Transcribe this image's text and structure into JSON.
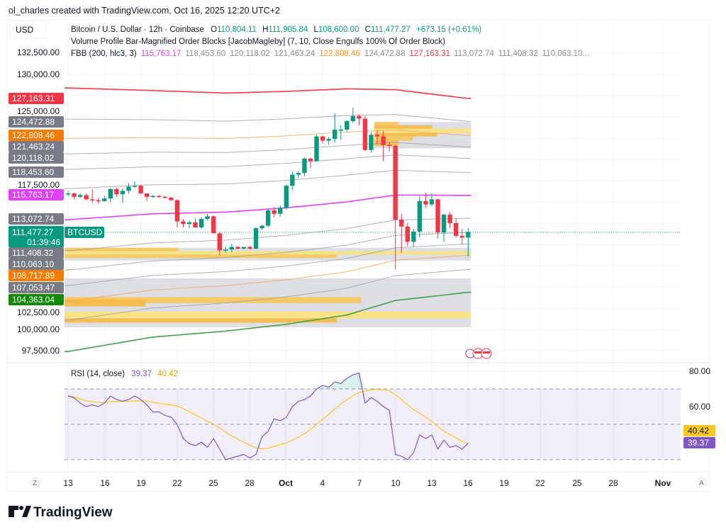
{
  "credit": "ol_charles created with TradingView.com, Oct 16, 2025 12:20 UTC+2",
  "currency": "USD",
  "legend": {
    "symbol": "Bitcoin / U.S. Dollar · 12h · Coinbase",
    "o_label": "O",
    "o": "110,804.11",
    "h_label": "H",
    "h": "111,905.84",
    "l_label": "L",
    "l": "108,600.00",
    "c_label": "C",
    "c": "111,477.27",
    "change": "+673.15 (+0.61%)",
    "indicator1": "Volume Profile Bar-Magnified Order Blocks [JacobMagleby] (7, 10, Close Engulfs 100% Of Order Block)",
    "indicator2": "FBB (200, hlc3, 3)",
    "fbb_values": [
      {
        "text": "115,763.17",
        "color": "#e040fb"
      },
      {
        "text": "118,453.60",
        "color": "#8c8c8c"
      },
      {
        "text": "120,118.02",
        "color": "#8c8c8c"
      },
      {
        "text": "121,463.24",
        "color": "#8c8c8c"
      },
      {
        "text": "122,808.46",
        "color": "#f7931a"
      },
      {
        "text": "124,472.88",
        "color": "#8c8c8c"
      },
      {
        "text": "127,163.31",
        "color": "#f23645"
      },
      {
        "text": "113,072.74",
        "color": "#8c8c8c"
      },
      {
        "text": "111,408.32",
        "color": "#8c8c8c"
      },
      {
        "text": "110,063.10...",
        "color": "#8c8c8c"
      }
    ]
  },
  "price_axis": [
    "132,500.00",
    "130,000.00",
    "125,000.00",
    "117,500.00",
    "102,500.00",
    "100,000.00",
    "97,500.00"
  ],
  "price_badges": [
    {
      "text": "127,163.31",
      "color": "#f23645"
    },
    {
      "text": "124,472.88",
      "color": "#787b86"
    },
    {
      "text": "122,808.46",
      "color": "#f57c00"
    },
    {
      "text": "121,463.24",
      "color": "#787b86"
    },
    {
      "text": "120,118.02",
      "color": "#787b86"
    },
    {
      "text": "118,453.60",
      "color": "#787b86"
    },
    {
      "text": "115,763.17",
      "color": "#e040fb"
    },
    {
      "text": "113,072.74",
      "color": "#787b86"
    },
    {
      "text": "111,408.32",
      "color": "#787b86"
    },
    {
      "text": "110,063.10",
      "color": "#787b86"
    },
    {
      "text": "108,717.89",
      "color": "#f57c00"
    },
    {
      "text": "107,053.47",
      "color": "#787b86"
    },
    {
      "text": "104,363.04",
      "color": "#138a07"
    }
  ],
  "last_price": {
    "value": "111,477.27",
    "countdown": "01:39:46",
    "symbol_tag": "BTCUSD",
    "color": "#089981"
  },
  "time_axis": [
    {
      "text": "13"
    },
    {
      "text": "16"
    },
    {
      "text": "19"
    },
    {
      "text": "22"
    },
    {
      "text": "25"
    },
    {
      "text": "28"
    },
    {
      "text": "Oct",
      "bold": true
    },
    {
      "text": "4"
    },
    {
      "text": "7"
    },
    {
      "text": "10"
    },
    {
      "text": "13"
    },
    {
      "text": "16"
    },
    {
      "text": "19"
    },
    {
      "text": "22"
    },
    {
      "text": "25"
    },
    {
      "text": "28"
    },
    {
      "text": "Nov",
      "bold": true
    }
  ],
  "time_axis_left_btn": "Z",
  "time_axis_right_btn": "A",
  "rsi": {
    "label": "RSI (14, close)",
    "value": "39.37",
    "ma_value": "40.42",
    "axis": [
      "80.00",
      "60.00"
    ],
    "levels": [
      70,
      50,
      30
    ],
    "line_color": "#7e57c2",
    "ma_color": "#f9c623"
  },
  "watermark": "TradingView",
  "colors": {
    "up": "#089981",
    "down": "#f23645",
    "basis": "#e040fb",
    "upper": "#f23645",
    "lower": "#43a047",
    "fib": "#9e9e9e",
    "fib_mid": "#f7a14a"
  },
  "chart_data": {
    "type": "candlestick",
    "interval": "12h",
    "first_candle": "Sep 13, 2025",
    "last_candle": "Oct 16, 2025",
    "ylim": [
      96000,
      134000
    ],
    "ohlc": [
      [
        115900,
        116300,
        115700,
        116000
      ],
      [
        116000,
        116100,
        115300,
        115600
      ],
      [
        115600,
        116000,
        115400,
        115800
      ],
      [
        115800,
        116000,
        115200,
        115300
      ],
      [
        115300,
        116500,
        114900,
        115200
      ],
      [
        115200,
        115500,
        114800,
        115100
      ],
      [
        115100,
        115700,
        115000,
        115400
      ],
      [
        115400,
        116600,
        115000,
        116500
      ],
      [
        116500,
        116700,
        115600,
        115900
      ],
      [
        115900,
        116600,
        114900,
        116300
      ],
      [
        116300,
        117200,
        116000,
        116800
      ],
      [
        116800,
        117400,
        116600,
        116900
      ],
      [
        116900,
        117000,
        115900,
        116000
      ],
      [
        116000,
        116000,
        115100,
        115600
      ],
      [
        115600,
        115800,
        115500,
        115700
      ],
      [
        115700,
        115800,
        115500,
        115600
      ],
      [
        115600,
        115700,
        115400,
        115500
      ],
      [
        115500,
        115600,
        115100,
        115200
      ],
      [
        115200,
        115300,
        112000,
        112700
      ],
      [
        112700,
        113000,
        112000,
        112400
      ],
      [
        112400,
        112800,
        111900,
        112600
      ],
      [
        112600,
        113100,
        112000,
        112000
      ],
      [
        112000,
        113200,
        111800,
        113000
      ],
      [
        113000,
        113600,
        112800,
        113300
      ],
      [
        113300,
        113400,
        111300,
        111300
      ],
      [
        111300,
        111400,
        108700,
        109300
      ],
      [
        109300,
        109700,
        109000,
        109400
      ],
      [
        109400,
        110100,
        109100,
        109700
      ],
      [
        109700,
        109800,
        109400,
        109500
      ],
      [
        109500,
        109700,
        109400,
        109700
      ],
      [
        109700,
        109800,
        109400,
        109500
      ],
      [
        109500,
        112000,
        109400,
        111900
      ],
      [
        111900,
        112300,
        111700,
        112200
      ],
      [
        112200,
        114200,
        112000,
        114000
      ],
      [
        114000,
        114400,
        113200,
        113600
      ],
      [
        113600,
        114600,
        113300,
        114300
      ],
      [
        114300,
        117000,
        114100,
        116900
      ],
      [
        116900,
        118600,
        116400,
        118200
      ],
      [
        118200,
        118600,
        117800,
        118400
      ],
      [
        118400,
        120200,
        118000,
        120100
      ],
      [
        120100,
        120200,
        119000,
        119800
      ],
      [
        119800,
        122900,
        119700,
        122700
      ],
      [
        122700,
        122800,
        121900,
        122200
      ],
      [
        122200,
        122600,
        121700,
        122400
      ],
      [
        122400,
        125400,
        122000,
        123500
      ],
      [
        123500,
        124000,
        122300,
        123500
      ],
      [
        123500,
        124600,
        123300,
        124500
      ],
      [
        124500,
        126100,
        124300,
        125100
      ],
      [
        125100,
        125300,
        124000,
        124800
      ],
      [
        124800,
        125100,
        121000,
        121100
      ],
      [
        121100,
        123200,
        120800,
        122900
      ],
      [
        122900,
        123400,
        121800,
        122700
      ],
      [
        122700,
        123300,
        119800,
        121700
      ],
      [
        121700,
        122000,
        120900,
        121600
      ],
      [
        121600,
        121700,
        107100,
        112900
      ],
      [
        112900,
        113600,
        109000,
        112100
      ],
      [
        112100,
        112500,
        109800,
        110300
      ],
      [
        110300,
        111800,
        109700,
        111500
      ],
      [
        111500,
        115700,
        110800,
        115100
      ],
      [
        115100,
        116100,
        114300,
        114700
      ],
      [
        114700,
        116000,
        114500,
        115300
      ],
      [
        115300,
        115400,
        110700,
        111400
      ],
      [
        111400,
        113600,
        110300,
        113500
      ],
      [
        113500,
        113800,
        111900,
        112500
      ],
      [
        112500,
        113100,
        110800,
        111000
      ],
      [
        111000,
        111800,
        110000,
        110800
      ],
      [
        110804.11,
        111905.84,
        108600,
        111477.27
      ]
    ],
    "fbb": {
      "sample_candles": [
        0,
        14,
        26,
        36,
        46,
        54,
        66
      ],
      "basis": [
        112900,
        113600,
        113800,
        114300,
        115000,
        115800,
        115763.17
      ],
      "upper": [
        128400,
        128100,
        127800,
        128000,
        128300,
        128200,
        127163.31
      ],
      "fib_levels": [
        1,
        0.764,
        0.618,
        0.5,
        0.382,
        0.236
      ]
    },
    "order_blocks": [
      {
        "from_candle": 51,
        "to_candle": 66,
        "top": 124400,
        "bottom": 121300,
        "profile": [
          [
            124400,
            124000,
            0.25
          ],
          [
            124000,
            123600,
            0.6
          ],
          [
            123600,
            123100,
            1.0
          ],
          [
            123100,
            122700,
            0.65
          ],
          [
            122700,
            122200,
            0.4
          ],
          [
            122200,
            121600,
            0.25
          ]
        ]
      },
      {
        "from_candle": 0,
        "to_candle": 66,
        "top": 109600,
        "bottom": 108100,
        "profile": [
          [
            109600,
            109200,
            0.28
          ],
          [
            109200,
            108800,
            1.0
          ],
          [
            108800,
            108400,
            0.67
          ]
        ]
      },
      {
        "from_candle": 0,
        "to_candle": 66,
        "top": 106000,
        "bottom": 100250,
        "profile": [
          [
            103800,
            103100,
            0.73
          ],
          [
            103500,
            102700,
            0.2
          ],
          [
            102100,
            101300,
            1.0
          ],
          [
            101300,
            100800,
            0.67
          ]
        ]
      }
    ],
    "rsi_values": [
      66,
      65,
      62,
      60,
      61,
      60,
      62,
      66,
      64,
      63,
      64,
      66,
      64,
      61,
      57,
      57,
      55,
      54,
      50,
      42,
      39,
      38,
      40,
      37,
      42,
      36,
      30,
      31,
      32,
      33,
      31,
      33,
      43,
      46,
      53,
      52,
      54,
      60,
      63,
      64,
      66,
      70,
      72,
      71,
      74,
      73,
      76,
      78,
      79,
      62,
      65,
      63,
      60,
      58,
      33,
      32,
      30,
      34,
      44,
      42,
      44,
      36,
      41,
      37,
      38,
      36,
      39.37
    ],
    "rsi_ylim": [
      25,
      85
    ]
  }
}
